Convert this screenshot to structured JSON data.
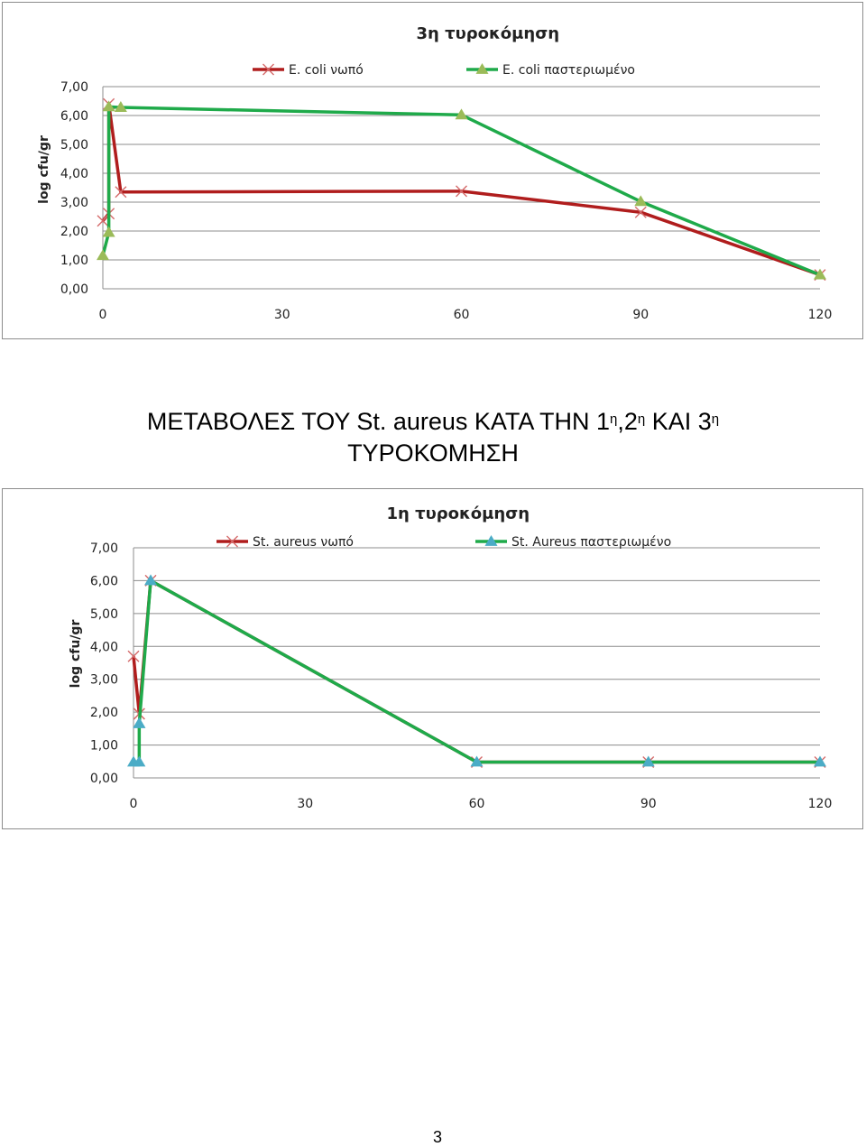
{
  "heading": {
    "line1_main": "ΜΕΤΑΒΟΛΕΣ ΤΟΥ St. aureus ΚΑΤΑ ΤΗΝ 1",
    "sup1": "η",
    "mid": ",2",
    "sup2": "η",
    "and": " ΚΑΙ 3",
    "sup3": "η",
    "line2": "ΤΥΡΟΚΟΜΗΣΗ"
  },
  "page_number": "3",
  "chart_data": [
    {
      "type": "line",
      "title": "3η τυροκόμηση",
      "ylabel": "log cfu/gr",
      "xlabel": "",
      "xlim": [
        0,
        120
      ],
      "ylim": [
        0,
        7
      ],
      "x_ticks": [
        "0",
        "30",
        "60",
        "90",
        "120"
      ],
      "y_ticks": [
        "0,00",
        "1,00",
        "2,00",
        "3,00",
        "4,00",
        "5,00",
        "6,00",
        "7,00"
      ],
      "grid": true,
      "legend": "top",
      "series": [
        {
          "name": "E. coli νωπό",
          "color": "#b01d1d",
          "marker": "x",
          "x": [
            0,
            1,
            1,
            3,
            60,
            90,
            120
          ],
          "y": [
            2.35,
            2.6,
            6.4,
            3.35,
            3.38,
            2.65,
            0.48
          ]
        },
        {
          "name": "E. coli παστεριωμένο",
          "color": "#1faa4a",
          "marker_color": "#9bbb59",
          "marker": "triangle",
          "x": [
            0,
            1,
            1,
            3,
            60,
            90,
            120
          ],
          "y": [
            1.15,
            1.95,
            6.3,
            6.28,
            6.02,
            3.02,
            0.48
          ]
        }
      ]
    },
    {
      "type": "line",
      "title": "1η  τυροκόμηση",
      "ylabel": "log cfu/gr",
      "xlabel": "",
      "xlim": [
        0,
        120
      ],
      "ylim": [
        0,
        7
      ],
      "x_ticks": [
        "0",
        "30",
        "60",
        "90",
        "120"
      ],
      "y_ticks": [
        "0,00",
        "1,00",
        "2,00",
        "3,00",
        "4,00",
        "5,00",
        "6,00",
        "7,00"
      ],
      "grid": true,
      "legend": "top",
      "series": [
        {
          "name": "St. aureus νωπό",
          "color": "#b01d1d",
          "marker": "x",
          "x": [
            0,
            1,
            1,
            3,
            60,
            90,
            120
          ],
          "y": [
            3.7,
            1.95,
            1.95,
            6.0,
            0.48,
            0.48,
            0.48
          ]
        },
        {
          "name": "St. Aureus παστεριωμένο",
          "color": "#1faa4a",
          "marker_color": "#4bacc6",
          "marker": "triangle",
          "x": [
            0,
            1,
            1,
            1,
            3,
            60,
            90,
            120
          ],
          "y": [
            0.48,
            0.48,
            1.65,
            1.65,
            6.0,
            0.48,
            0.48,
            0.48
          ]
        }
      ]
    }
  ]
}
